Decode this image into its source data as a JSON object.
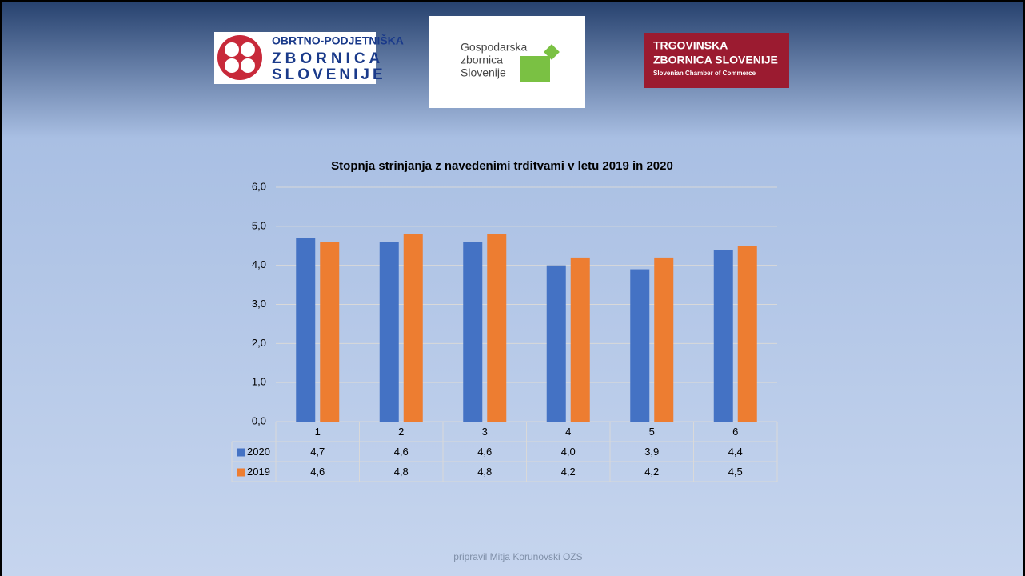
{
  "logos": {
    "ozs": [
      "OBRTNO-PODJETNIŠKA",
      "ZBORNICA",
      "SLOVENIJE"
    ],
    "gzs": [
      "Gospodarska",
      "zbornica",
      "Slovenije"
    ],
    "tzs": [
      "TRGOVINSKA",
      "ZBORNICA SLOVENIJE",
      "Slovenian Chamber of Commerce"
    ]
  },
  "chart_data": {
    "type": "bar",
    "title": "Stopnja strinjanja z navedenimi trditvami v letu 2019 in 2020",
    "categories": [
      "1",
      "2",
      "3",
      "4",
      "5",
      "6"
    ],
    "series": [
      {
        "name": "2020",
        "color": "#4472c4",
        "values": [
          4.7,
          4.6,
          4.6,
          4.0,
          3.9,
          4.4
        ],
        "value_labels": [
          "4,7",
          "4,6",
          "4,6",
          "4,0",
          "3,9",
          "4,4"
        ]
      },
      {
        "name": "2019",
        "color": "#ed7d31",
        "values": [
          4.6,
          4.8,
          4.8,
          4.2,
          4.2,
          4.5
        ],
        "value_labels": [
          "4,6",
          "4,8",
          "4,8",
          "4,2",
          "4,2",
          "4,5"
        ]
      }
    ],
    "ylim": [
      0,
      6
    ],
    "yticks": [
      {
        "value": 0,
        "label": "0,0"
      },
      {
        "value": 1,
        "label": "1,0"
      },
      {
        "value": 2,
        "label": "2,0"
      },
      {
        "value": 3,
        "label": "3,0"
      },
      {
        "value": 4,
        "label": "4,0"
      },
      {
        "value": 5,
        "label": "5,0"
      },
      {
        "value": 6,
        "label": "6,0"
      }
    ],
    "grid": true
  },
  "footer": "pripravil Mitja Korunovski OZS"
}
